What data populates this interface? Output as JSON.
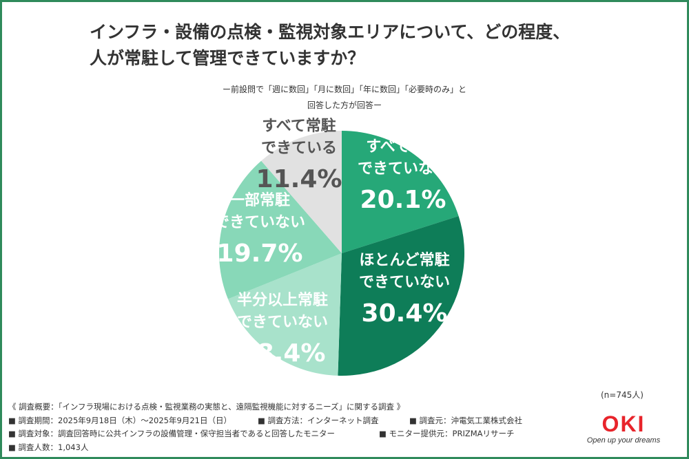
{
  "title": {
    "line1": "インフラ・設備の点検・監視対象エリアについて、どの程度、",
    "line2": "人が常駐して管理できていますか？"
  },
  "subtitle": {
    "line1": "ー前設問で「週に数回」「月に数回」「年に数回」「必要時のみ」と",
    "line2": "回答した方が回答ー"
  },
  "chart_data": {
    "type": "pie",
    "slices": [
      {
        "label_lines": [
          "すべて常駐",
          "できていない"
        ],
        "value": 20.1,
        "value_label": "20.1%",
        "color": "#26a878",
        "text_color": "#ffffff"
      },
      {
        "label_lines": [
          "ほとんど常駐",
          "できていない"
        ],
        "value": 30.4,
        "value_label": "30.4%",
        "color": "#0e7d58",
        "text_color": "#ffffff"
      },
      {
        "label_lines": [
          "半分以上常駐",
          "できていない"
        ],
        "value": 18.4,
        "value_label": "18.4%",
        "color": "#a8e2cb",
        "text_color": "#ffffff"
      },
      {
        "label_lines": [
          "一部常駐",
          "できていない"
        ],
        "value": 19.7,
        "value_label": "19.7%",
        "color": "#88d8b8",
        "text_color": "#ffffff"
      },
      {
        "label_lines": [
          "すべて常駐",
          "できている"
        ],
        "value": 11.4,
        "value_label": "11.4%",
        "color": "#e1e1e1",
        "text_color": "#555555"
      }
    ]
  },
  "respondents_note": "(n=745人)",
  "summary": {
    "line1": "《 調査概要：「インフラ現場における点検・監視業務の実態と、遠隔監視機能に対するニーズ」に関する調査 》",
    "period": "■ 調査期間：2025年9月18日（木）～2025年9月21日（日）",
    "method": "■ 調査方法：インターネット調査",
    "source": "■ 調査元：沖電気工業株式会社",
    "target": "■ 調査対象：調査回答時に公共インフラの設備管理・保守担当者であると回答したモニター",
    "provider": "■ モニター提供元：PRIZMAリサーチ",
    "count": "■ 調査人数：1,043人"
  },
  "logo": {
    "name": "OKI",
    "tagline": "Open up your dreams"
  }
}
